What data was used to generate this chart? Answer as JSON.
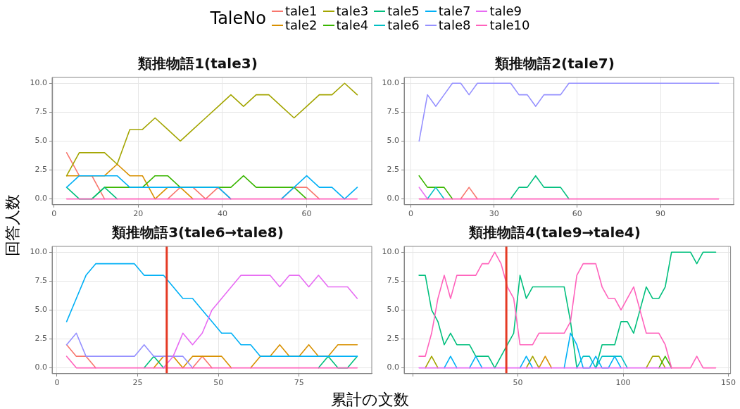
{
  "chart_data": [
    {
      "type": "line",
      "title": "類推物語1(tale3)",
      "ylabel": "回答人数",
      "legend_title": "TaleNo",
      "legend": "top",
      "grid": true,
      "x": [
        3,
        6,
        9,
        12,
        15,
        18,
        21,
        24,
        27,
        30,
        33,
        36,
        39,
        42,
        45,
        48,
        51,
        54,
        57,
        60,
        63,
        66,
        69,
        72
      ],
      "xlim": [
        -0.45,
        75.45
      ],
      "xticks": [
        0,
        20,
        40,
        60
      ],
      "ylim": [
        -0.5,
        10.5
      ],
      "yticks": [
        {
          "value": 0,
          "label": "0.0"
        },
        {
          "value": 2.5,
          "label": "2.5"
        },
        {
          "value": 5,
          "label": "5.0"
        },
        {
          "value": 7.5,
          "label": "7.5"
        },
        {
          "value": 10,
          "label": "10.0"
        }
      ],
      "series": [
        {
          "name": "tale1",
          "color": "#f8766d",
          "values": [
            4,
            2,
            2,
            0,
            null,
            null,
            null,
            null,
            0,
            1,
            1,
            0,
            1,
            0,
            null,
            null,
            null,
            0,
            1,
            1,
            0,
            null,
            null,
            null
          ]
        },
        {
          "name": "tale2",
          "color": "#d89000",
          "values": [
            2,
            2,
            2,
            2,
            3,
            2,
            2,
            0,
            1,
            1,
            0,
            null,
            null,
            null,
            null,
            null,
            null,
            null,
            null,
            null,
            null,
            null,
            null,
            null
          ]
        },
        {
          "name": "tale3",
          "color": "#a3a500",
          "values": [
            2,
            4,
            4,
            4,
            3,
            6,
            6,
            7,
            6,
            5,
            6,
            7,
            8,
            9,
            8,
            9,
            9,
            8,
            7,
            8,
            9,
            9,
            10,
            9
          ]
        },
        {
          "name": "tale4",
          "color": "#39b600",
          "values": [
            null,
            null,
            0,
            1,
            1,
            1,
            1,
            2,
            2,
            1,
            1,
            1,
            1,
            1,
            2,
            1,
            1,
            1,
            1,
            0,
            null,
            null,
            null,
            null
          ]
        },
        {
          "name": "tale5",
          "color": "#00bf7d",
          "values": [
            1,
            0,
            0,
            1,
            0,
            null,
            null,
            null,
            null,
            null,
            null,
            null,
            null,
            null,
            null,
            null,
            null,
            null,
            null,
            null,
            null,
            null,
            null,
            null
          ]
        },
        {
          "name": "tale6",
          "color": "#00bfc4",
          "values": [
            null,
            null,
            null,
            null,
            null,
            null,
            null,
            null,
            null,
            null,
            null,
            null,
            null,
            null,
            null,
            null,
            null,
            null,
            null,
            null,
            null,
            null,
            null,
            null
          ]
        },
        {
          "name": "tale7",
          "color": "#00b0f6",
          "values": [
            1,
            2,
            2,
            2,
            2,
            1,
            1,
            1,
            1,
            1,
            1,
            1,
            1,
            0,
            null,
            null,
            null,
            0,
            1,
            2,
            1,
            1,
            0,
            1
          ]
        },
        {
          "name": "tale8",
          "color": "#9590ff",
          "values": [
            null,
            null,
            null,
            null,
            null,
            null,
            null,
            null,
            null,
            null,
            null,
            null,
            null,
            null,
            null,
            null,
            null,
            null,
            null,
            null,
            null,
            null,
            null,
            null
          ]
        },
        {
          "name": "tale9",
          "color": "#e76bf3",
          "values": [
            null,
            null,
            null,
            null,
            null,
            null,
            null,
            null,
            null,
            null,
            null,
            null,
            null,
            null,
            null,
            null,
            null,
            null,
            null,
            null,
            null,
            null,
            null,
            null
          ]
        },
        {
          "name": "tale10",
          "color": "#ff62bc",
          "values": [
            0,
            0,
            0,
            0,
            0,
            0,
            0,
            0,
            0,
            0,
            0,
            0,
            0,
            0,
            0,
            0,
            0,
            0,
            0,
            0,
            0,
            0,
            0,
            0
          ]
        }
      ]
    },
    {
      "type": "line",
      "title": "類推物語2(tale7)",
      "grid": true,
      "x": [
        3,
        6,
        9,
        12,
        15,
        18,
        21,
        24,
        27,
        30,
        33,
        36,
        39,
        42,
        45,
        48,
        51,
        54,
        57,
        60,
        63,
        66,
        69,
        72,
        75,
        78,
        81,
        84,
        87,
        90,
        93,
        96,
        99,
        102,
        105,
        108,
        111
      ],
      "xlim": [
        -2.4,
        116.4
      ],
      "xticks": [
        0,
        30,
        60,
        90
      ],
      "ylim": [
        -0.5,
        10.5
      ],
      "yticks": [
        {
          "value": 0,
          "label": "0.0"
        },
        {
          "value": 2.5,
          "label": "2.5"
        },
        {
          "value": 5,
          "label": "5.0"
        },
        {
          "value": 7.5,
          "label": "7.5"
        },
        {
          "value": 10,
          "label": "10.0"
        }
      ],
      "series": [
        {
          "color": "#f8766d",
          "values": [
            null,
            null,
            null,
            null,
            null,
            0,
            1,
            0,
            null,
            null,
            null,
            null,
            null,
            null,
            null,
            null,
            null,
            null,
            null,
            null,
            null,
            null,
            null,
            null,
            null,
            null,
            null,
            null,
            null,
            null,
            null,
            null,
            null,
            null,
            null,
            null,
            null
          ]
        },
        {
          "color": "#d89000",
          "values": [
            null,
            null,
            null,
            null,
            null,
            null,
            null,
            null,
            null,
            null,
            null,
            null,
            null,
            null,
            null,
            null,
            null,
            null,
            null,
            null,
            null,
            null,
            null,
            null,
            null,
            null,
            null,
            null,
            null,
            null,
            null,
            null,
            null,
            null,
            null,
            null,
            null
          ]
        },
        {
          "color": "#a3a500",
          "values": [
            null,
            null,
            null,
            null,
            null,
            null,
            null,
            null,
            null,
            null,
            null,
            null,
            null,
            null,
            null,
            null,
            null,
            null,
            null,
            null,
            null,
            null,
            null,
            null,
            null,
            null,
            null,
            null,
            null,
            null,
            null,
            null,
            null,
            null,
            null,
            null,
            null
          ]
        },
        {
          "color": "#39b600",
          "values": [
            2,
            1,
            1,
            1,
            0,
            null,
            null,
            null,
            null,
            null,
            null,
            null,
            null,
            null,
            null,
            null,
            null,
            null,
            null,
            null,
            null,
            null,
            null,
            null,
            null,
            null,
            null,
            null,
            null,
            null,
            null,
            null,
            null,
            null,
            null,
            null,
            null
          ]
        },
        {
          "color": "#00bf7d",
          "values": [
            null,
            null,
            null,
            null,
            null,
            null,
            null,
            null,
            null,
            null,
            null,
            0,
            1,
            1,
            2,
            1,
            1,
            1,
            0,
            null,
            null,
            null,
            null,
            null,
            null,
            null,
            null,
            null,
            null,
            null,
            null,
            null,
            null,
            null,
            null,
            null,
            null
          ]
        },
        {
          "color": "#00bfc4",
          "values": [
            null,
            0,
            1,
            0,
            null,
            null,
            null,
            null,
            null,
            null,
            null,
            null,
            null,
            null,
            null,
            null,
            null,
            null,
            null,
            null,
            null,
            null,
            null,
            null,
            null,
            null,
            null,
            null,
            null,
            null,
            null,
            null,
            null,
            null,
            null,
            null,
            null
          ]
        },
        {
          "color": "#00b0f6",
          "values": [
            null,
            null,
            null,
            null,
            null,
            null,
            null,
            null,
            null,
            null,
            null,
            null,
            null,
            null,
            null,
            null,
            null,
            null,
            null,
            null,
            null,
            null,
            null,
            null,
            null,
            null,
            null,
            null,
            null,
            null,
            null,
            null,
            null,
            null,
            null,
            null,
            null
          ]
        },
        {
          "color": "#9590ff",
          "values": [
            5,
            9,
            8,
            9,
            10,
            10,
            9,
            10,
            10,
            10,
            10,
            10,
            9,
            9,
            8,
            9,
            9,
            9,
            10,
            10,
            10,
            10,
            10,
            10,
            10,
            10,
            10,
            10,
            10,
            10,
            10,
            10,
            10,
            10,
            10,
            10,
            10
          ]
        },
        {
          "color": "#e76bf3",
          "values": [
            1,
            0,
            null,
            null,
            null,
            null,
            null,
            null,
            null,
            null,
            null,
            null,
            null,
            null,
            null,
            null,
            null,
            null,
            null,
            null,
            null,
            null,
            null,
            null,
            null,
            null,
            null,
            null,
            null,
            null,
            null,
            null,
            null,
            null,
            null,
            null,
            null
          ]
        },
        {
          "color": "#ff62bc",
          "values": [
            0,
            0,
            0,
            0,
            0,
            0,
            0,
            0,
            0,
            0,
            0,
            0,
            0,
            0,
            0,
            0,
            0,
            0,
            0,
            0,
            0,
            0,
            0,
            0,
            0,
            0,
            0,
            0,
            0,
            0,
            0,
            0,
            0,
            0,
            0,
            0,
            0
          ]
        }
      ]
    },
    {
      "type": "line",
      "title": "類推物語3(tale6→tale8)",
      "xlabel": "累計の文数",
      "grid": true,
      "x": [
        3,
        6,
        9,
        12,
        15,
        18,
        21,
        24,
        27,
        30,
        33,
        36,
        39,
        42,
        45,
        48,
        51,
        54,
        57,
        60,
        63,
        66,
        69,
        72,
        75,
        78,
        81,
        84,
        87,
        90,
        93
      ],
      "xlim": [
        -1.5,
        97.5
      ],
      "xticks": [
        0,
        25,
        50,
        75
      ],
      "ylim": [
        -0.5,
        10.5
      ],
      "yticks": [
        {
          "value": 0,
          "label": "0.0"
        },
        {
          "value": 2.5,
          "label": "2.5"
        },
        {
          "value": 5,
          "label": "5.0"
        },
        {
          "value": 7.5,
          "label": "7.5"
        },
        {
          "value": 10,
          "label": "10.0"
        }
      ],
      "ref_lines": [
        {
          "axis": "x",
          "value": 34,
          "color": "#e53a24"
        }
      ],
      "series": [
        {
          "color": "#f8766d",
          "values": [
            2,
            1,
            1,
            0,
            null,
            null,
            null,
            null,
            null,
            null,
            null,
            null,
            null,
            0,
            1,
            0,
            null,
            null,
            null,
            null,
            null,
            null,
            null,
            null,
            null,
            null,
            null,
            null,
            null,
            null,
            null
          ]
        },
        {
          "color": "#d89000",
          "values": [
            null,
            null,
            null,
            null,
            null,
            null,
            null,
            null,
            null,
            0,
            1,
            1,
            0,
            1,
            1,
            1,
            1,
            0,
            null,
            0,
            1,
            1,
            2,
            1,
            1,
            2,
            1,
            1,
            2,
            2,
            2
          ]
        },
        {
          "color": "#a3a500",
          "values": [
            null,
            null,
            null,
            null,
            null,
            null,
            null,
            null,
            null,
            null,
            null,
            null,
            null,
            null,
            null,
            null,
            null,
            null,
            null,
            null,
            null,
            null,
            null,
            null,
            null,
            null,
            null,
            null,
            null,
            null,
            null
          ]
        },
        {
          "color": "#39b600",
          "values": [
            null,
            null,
            null,
            null,
            null,
            null,
            null,
            null,
            null,
            null,
            null,
            null,
            null,
            null,
            null,
            null,
            null,
            null,
            null,
            null,
            null,
            null,
            null,
            null,
            null,
            null,
            null,
            null,
            null,
            null,
            null
          ]
        },
        {
          "color": "#00bf7d",
          "values": [
            null,
            null,
            null,
            null,
            null,
            null,
            null,
            null,
            0,
            1,
            0,
            null,
            null,
            null,
            null,
            null,
            null,
            null,
            null,
            null,
            null,
            null,
            null,
            null,
            null,
            null,
            0,
            1,
            0,
            0,
            1
          ]
        },
        {
          "color": "#00bfc4",
          "values": [
            null,
            null,
            null,
            null,
            null,
            null,
            null,
            null,
            null,
            null,
            null,
            null,
            null,
            null,
            null,
            null,
            null,
            null,
            null,
            null,
            null,
            null,
            null,
            null,
            null,
            null,
            null,
            null,
            null,
            null,
            null
          ]
        },
        {
          "color": "#00b0f6",
          "values": [
            4,
            6,
            8,
            9,
            9,
            9,
            9,
            9,
            8,
            8,
            8,
            7,
            6,
            6,
            5,
            4,
            3,
            3,
            2,
            2,
            1,
            1,
            1,
            1,
            1,
            1,
            1,
            1,
            1,
            1,
            1
          ]
        },
        {
          "color": "#9590ff",
          "values": [
            2,
            3,
            1,
            1,
            1,
            1,
            1,
            1,
            2,
            1,
            1,
            1,
            1,
            0,
            null,
            null,
            null,
            null,
            null,
            null,
            null,
            null,
            null,
            null,
            null,
            null,
            null,
            null,
            null,
            null,
            null
          ]
        },
        {
          "color": "#e76bf3",
          "values": [
            null,
            null,
            null,
            null,
            null,
            null,
            null,
            null,
            null,
            null,
            0,
            1,
            3,
            2,
            3,
            5,
            6,
            7,
            8,
            8,
            8,
            8,
            7,
            8,
            8,
            7,
            8,
            7,
            7,
            7,
            6
          ]
        },
        {
          "color": "#ff62bc",
          "values": [
            1,
            0,
            0,
            0,
            0,
            0,
            0,
            0,
            0,
            0,
            0,
            0,
            0,
            0,
            0,
            0,
            0,
            0,
            0,
            0,
            0,
            0,
            0,
            0,
            0,
            0,
            0,
            0,
            0,
            0,
            0
          ]
        }
      ]
    },
    {
      "type": "line",
      "title": "類推物語4(tale9→tale4)",
      "grid": true,
      "x": [
        3,
        6,
        9,
        12,
        15,
        18,
        21,
        24,
        27,
        30,
        33,
        36,
        39,
        42,
        45,
        48,
        51,
        54,
        57,
        60,
        63,
        66,
        69,
        72,
        75,
        78,
        81,
        84,
        87,
        90,
        93,
        96,
        99,
        102,
        105,
        108,
        111,
        114,
        117,
        120,
        123,
        126,
        129,
        132,
        135,
        138,
        141,
        144
      ],
      "xlim": [
        -4.05,
        151.05
      ],
      "xticks": [
        {
          "value": 0,
          "label": null
        },
        50,
        100,
        150
      ],
      "ylim": [
        -0.5,
        10.5
      ],
      "yticks": [
        {
          "value": 0,
          "label": "0.0"
        },
        {
          "value": 2.5,
          "label": "2.5"
        },
        {
          "value": 5,
          "label": "5.0"
        },
        {
          "value": 7.5,
          "label": "7.5"
        },
        {
          "value": 10,
          "label": "10.0"
        }
      ],
      "ref_lines": [
        {
          "axis": "x",
          "value": 44.5,
          "color": "#e53a24"
        }
      ],
      "series": [
        {
          "color": "#f8766d",
          "values": [
            null,
            null,
            null,
            null,
            null,
            null,
            null,
            null,
            null,
            null,
            null,
            null,
            null,
            null,
            null,
            null,
            null,
            null,
            null,
            null,
            null,
            null,
            null,
            null,
            null,
            null,
            null,
            null,
            null,
            null,
            null,
            null,
            null,
            null,
            null,
            null,
            null,
            null,
            null,
            null,
            null,
            null,
            null,
            null,
            null,
            null,
            null,
            null
          ]
        },
        {
          "color": "#d89000",
          "values": [
            null,
            null,
            null,
            null,
            null,
            null,
            null,
            null,
            null,
            null,
            null,
            null,
            null,
            null,
            null,
            null,
            null,
            null,
            null,
            0,
            1,
            0,
            null,
            null,
            null,
            null,
            null,
            null,
            null,
            null,
            null,
            null,
            null,
            null,
            null,
            null,
            null,
            null,
            null,
            null,
            null,
            null,
            null,
            null,
            null,
            null,
            null,
            null
          ]
        },
        {
          "color": "#a3a500",
          "values": [
            null,
            0,
            1,
            0,
            null,
            null,
            null,
            null,
            null,
            null,
            null,
            null,
            null,
            null,
            null,
            null,
            null,
            0,
            1,
            0,
            null,
            null,
            null,
            null,
            null,
            null,
            null,
            null,
            null,
            null,
            null,
            null,
            null,
            null,
            null,
            null,
            0,
            1,
            1,
            0,
            null,
            null,
            null,
            null,
            null,
            null,
            null,
            null
          ]
        },
        {
          "color": "#39b600",
          "values": [
            null,
            null,
            null,
            null,
            null,
            null,
            null,
            null,
            null,
            null,
            null,
            null,
            null,
            null,
            null,
            null,
            null,
            null,
            null,
            null,
            null,
            null,
            null,
            null,
            null,
            null,
            null,
            null,
            null,
            null,
            null,
            null,
            null,
            null,
            null,
            null,
            null,
            null,
            0,
            1,
            0,
            null,
            null,
            null,
            null,
            null,
            null,
            null
          ]
        },
        {
          "color": "#00bf7d",
          "values": [
            8,
            8,
            5,
            4,
            2,
            3,
            2,
            2,
            2,
            1,
            1,
            1,
            0,
            1,
            2,
            3,
            8,
            6,
            7,
            7,
            7,
            7,
            7,
            7,
            4,
            0,
            null,
            null,
            0,
            2,
            2,
            2,
            4,
            4,
            3,
            5,
            7,
            6,
            6,
            7,
            10,
            10,
            10,
            10,
            9,
            10,
            10,
            10
          ]
        },
        {
          "color": "#00bfc4",
          "values": [
            null,
            null,
            null,
            null,
            null,
            null,
            null,
            null,
            null,
            null,
            null,
            null,
            null,
            null,
            null,
            null,
            null,
            null,
            null,
            null,
            null,
            null,
            null,
            null,
            null,
            0,
            1,
            1,
            0,
            1,
            1,
            1,
            1,
            0,
            null,
            null,
            null,
            null,
            null,
            null,
            null,
            null,
            null,
            null,
            null,
            null,
            null,
            null
          ]
        },
        {
          "color": "#00b0f6",
          "values": [
            null,
            null,
            null,
            null,
            0,
            1,
            0,
            null,
            0,
            1,
            0,
            null,
            null,
            null,
            null,
            null,
            0,
            1,
            0,
            null,
            null,
            null,
            null,
            0,
            3,
            2,
            0,
            0,
            1,
            0,
            0,
            1,
            0,
            null,
            null,
            null,
            null,
            null,
            null,
            null,
            null,
            null,
            null,
            null,
            null,
            null,
            null,
            null
          ]
        },
        {
          "color": "#9590ff",
          "values": [
            null,
            null,
            null,
            null,
            null,
            null,
            null,
            null,
            null,
            null,
            null,
            null,
            null,
            null,
            null,
            null,
            null,
            null,
            null,
            null,
            null,
            null,
            null,
            null,
            null,
            null,
            null,
            null,
            null,
            null,
            null,
            null,
            null,
            null,
            null,
            null,
            null,
            null,
            null,
            null,
            null,
            null,
            null,
            null,
            null,
            null,
            null,
            null
          ]
        },
        {
          "color": "#e76bf3",
          "values": [
            0,
            0,
            0,
            0,
            0,
            0,
            0,
            0,
            0,
            0,
            0,
            0,
            0,
            0,
            0,
            0,
            0,
            0,
            0,
            0,
            0,
            0,
            0,
            0,
            0,
            0,
            0,
            0,
            0,
            0,
            0,
            0,
            0,
            0,
            0,
            0,
            0,
            0,
            0,
            0,
            0,
            null,
            null,
            null,
            null,
            null,
            null,
            null
          ]
        },
        {
          "color": "#ff62bc",
          "values": [
            1,
            1,
            3,
            6,
            8,
            6,
            8,
            8,
            8,
            8,
            9,
            9,
            10,
            9,
            7,
            6,
            2,
            2,
            2,
            3,
            3,
            3,
            3,
            3,
            4,
            8,
            9,
            9,
            9,
            7,
            6,
            6,
            5,
            6,
            7,
            5,
            3,
            3,
            3,
            2,
            0,
            0,
            0,
            0,
            1,
            0,
            0,
            0
          ]
        }
      ]
    }
  ]
}
